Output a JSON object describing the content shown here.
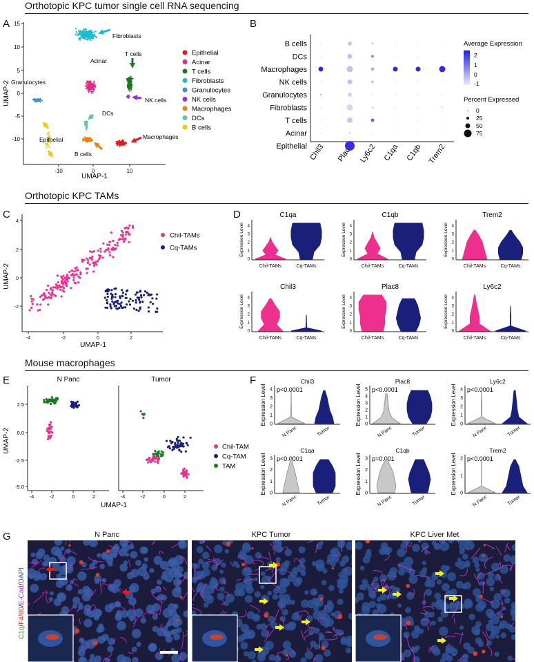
{
  "sections": {
    "s1": "Orthotopic KPC tumor single cell RNA sequencing",
    "s2": "Orthotopic KPC TAMs",
    "s3": "Mouse macrophages"
  },
  "panel_letters": [
    "A",
    "B",
    "C",
    "D",
    "E",
    "F",
    "G"
  ],
  "colors": {
    "epithelial": "#e41a1c",
    "acinar": "#e7298a",
    "tcells": "#1b7a1b",
    "fibroblasts": "#17becf",
    "granulocytes": "#3a8ee6",
    "nk": "#9b30d9",
    "macrophages": "#f07f0e",
    "dcs": "#66c2a5",
    "bcells": "#f2c60c",
    "chil": "#ee2f8e",
    "cq": "#1a1f7a",
    "tam": "#1f7a1f",
    "npanc": "#c8c8c8",
    "arrow": "#f4ee1a"
  },
  "panelA": {
    "xlabel": "UMAP-1",
    "ylabel": "UMAP-2",
    "xticks": [
      "-10",
      "0",
      "10"
    ],
    "yticks": [
      "15",
      "10",
      "5",
      "0",
      "-5",
      "-10"
    ],
    "cluster_labels": [
      "Fibroblasts",
      "T cells",
      "Acinar",
      "Granulocytes",
      "NK cells",
      "DCs",
      "B cells",
      "Macrophages",
      "Epithelial"
    ],
    "legend": [
      "Epithelial",
      "Acinar",
      "T cells",
      "Fibroblasts",
      "Granulocytes",
      "NK cells",
      "Macrophages",
      "DCs",
      "B cells"
    ]
  },
  "panelB": {
    "rows": [
      "B cells",
      "DCs",
      "Macrophages",
      "NK cells",
      "Granulocytes",
      "Fibroblasts",
      "T cells",
      "Acinar",
      "Epithelial"
    ],
    "cols": [
      "Chil3",
      "Plac8",
      "Ly6c2",
      "C1qa",
      "C1qb",
      "Trem2"
    ],
    "avg_title": "Average Expression",
    "avg_ticks": [
      "2",
      "1",
      "0",
      "-1"
    ],
    "pct_title": "Percent Expressed",
    "pct_ticks": [
      "0",
      "25",
      "50",
      "75"
    ]
  },
  "panelC": {
    "xlabel": "UMAP-1",
    "ylabel": "UMAP-2",
    "xticks": [
      "-4",
      "-2",
      "0",
      "2"
    ],
    "yticks": [
      "4",
      "2",
      "0",
      "-2"
    ],
    "legend": [
      "Chil-TAMs",
      "Cq-TAMs"
    ]
  },
  "panelD": {
    "ylabel": "Expression Level",
    "groups": [
      "Chil-TAMs",
      "Cq-TAMs"
    ],
    "genes": [
      "C1qa",
      "C1qb",
      "Trem2",
      "Chil3",
      "Plac8",
      "Ly6c2"
    ],
    "yticks": [
      "0",
      "1",
      "2",
      "3",
      "4"
    ]
  },
  "panelE": {
    "facets": [
      "N Panc",
      "Tumor"
    ],
    "xlabel": "UMAP-1",
    "ylabel": "UMAP-2",
    "xticks": [
      "-4",
      "-2",
      "0",
      "2"
    ],
    "yticks": [
      "2.5",
      "0.0",
      "-2.5",
      "-5.0"
    ],
    "legend": [
      "Chil-TAM",
      "Cq-TAM",
      "TAM"
    ]
  },
  "panelF": {
    "ylabel": "Expression Level",
    "groups": [
      "N Panc",
      "Tumor"
    ],
    "genes": [
      {
        "name": "Chil3",
        "p": "p<0.0001",
        "yticks": [
          "0",
          "1",
          "2",
          "3",
          "4"
        ]
      },
      {
        "name": "Plac8",
        "p": "p<0.0001",
        "yticks": [
          "0",
          "1",
          "2",
          "3",
          "4",
          "5"
        ]
      },
      {
        "name": "Ly6c2",
        "p": "p<0.0001",
        "yticks": [
          "0",
          "1",
          "2",
          "3",
          "4"
        ]
      },
      {
        "name": "C1qa",
        "p": "p<0.0001",
        "yticks": [
          "0",
          "1",
          "2",
          "3"
        ]
      },
      {
        "name": "C1qb",
        "p": "p=0.001",
        "yticks": [
          "0",
          "1",
          "2",
          "3"
        ]
      },
      {
        "name": "Trem2",
        "p": "p<0.0001",
        "yticks": [
          "0",
          "1",
          "2"
        ]
      }
    ]
  },
  "panelG": {
    "titles": [
      "N Panc",
      "KPC Tumor",
      "KPC Liver Met"
    ],
    "stain_label": [
      "C1q",
      "/",
      "F4/80",
      "/",
      "E-Cad",
      "/",
      "DAPI"
    ]
  }
}
